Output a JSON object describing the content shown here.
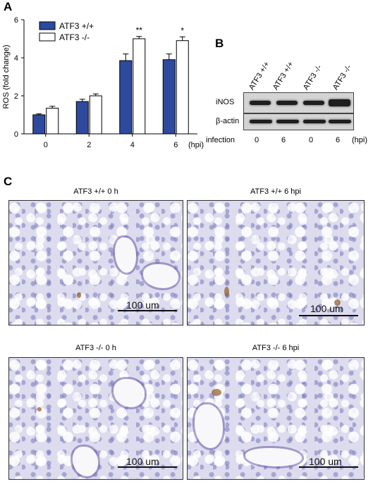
{
  "panels": {
    "a": "A",
    "b": "B",
    "c": "C"
  },
  "chart_data": {
    "type": "bar",
    "title": "",
    "xlabel": "",
    "ylabel": "ROS (fold change)",
    "x_unit": "(hpi)",
    "ylim": [
      0,
      6
    ],
    "yticks": [
      "0",
      "2",
      "4",
      "6"
    ],
    "categories": [
      "0",
      "2",
      "4",
      "6"
    ],
    "series": [
      {
        "name": "ATF3 +/+",
        "color": "#2e4a9e",
        "values": [
          1.0,
          1.7,
          3.85,
          3.9
        ],
        "errors": [
          0.05,
          0.12,
          0.35,
          0.3
        ]
      },
      {
        "name": "ATF3 -/-",
        "color": "#ffffff",
        "values": [
          1.35,
          2.0,
          5.0,
          4.9
        ],
        "errors": [
          0.1,
          0.1,
          0.12,
          0.2
        ]
      }
    ],
    "annotations": [
      "",
      "",
      "**",
      "*"
    ],
    "legend": "top-left",
    "grid": false
  },
  "blot": {
    "lanes": [
      "ATF3 +/+",
      "ATF3 +/+",
      "ATF3 -/-",
      "ATF3 -/-"
    ],
    "rows": [
      "iNOS",
      "β-actin"
    ],
    "infection_label": "infection",
    "infection_values": [
      "0",
      "6",
      "0",
      "6"
    ],
    "unit": "(hpi)"
  },
  "micrographs": [
    {
      "title": "ATF3 +/+ 0 h",
      "scale": "100 um"
    },
    {
      "title": "ATF3 +/+ 6 hpi",
      "scale": "100 um"
    },
    {
      "title": "ATF3 -/- 0 h",
      "scale": "100 um"
    },
    {
      "title": "ATF3 -/- 6 hpi",
      "scale": "100 um"
    }
  ]
}
